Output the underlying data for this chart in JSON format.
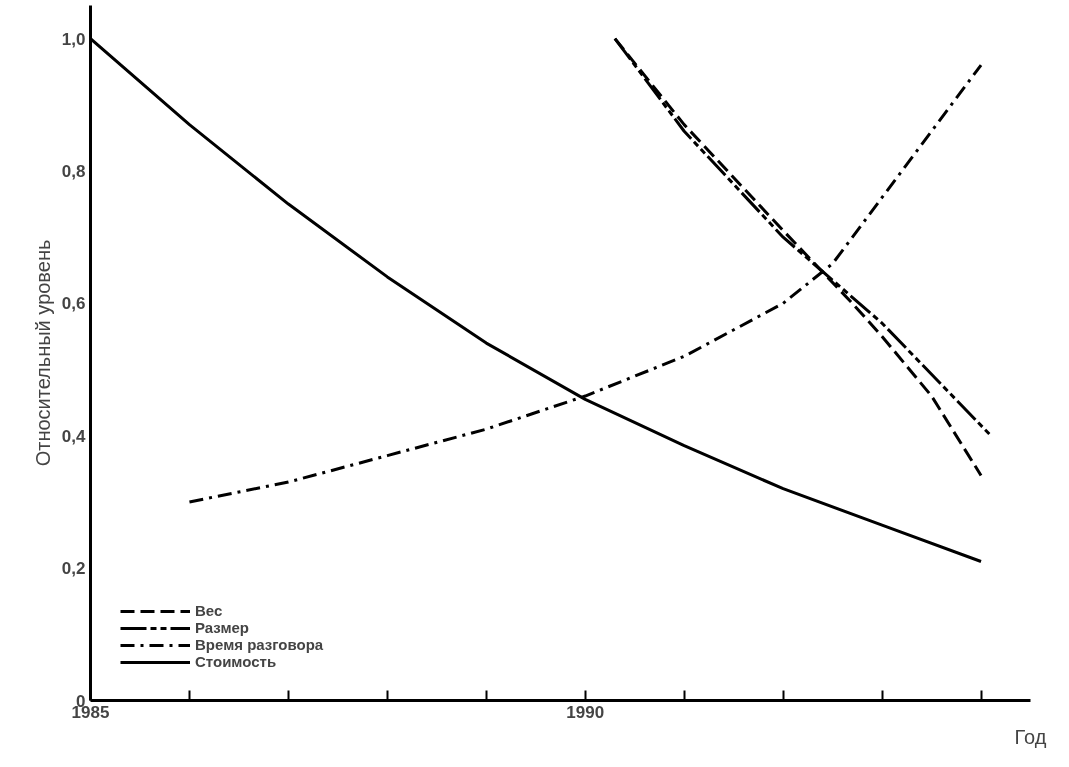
{
  "chart_data": {
    "type": "line",
    "ylabel": "Относительный уровень",
    "xlabel": "Год",
    "xlim": [
      1985,
      1994.5
    ],
    "ylim": [
      0,
      1.05
    ],
    "xticks": [
      {
        "value": 1985,
        "label": "1985"
      },
      {
        "value": 1986,
        "label": null
      },
      {
        "value": 1987,
        "label": null
      },
      {
        "value": 1988,
        "label": null
      },
      {
        "value": 1989,
        "label": null
      },
      {
        "value": 1990,
        "label": "1990"
      },
      {
        "value": 1991,
        "label": null
      },
      {
        "value": 1992,
        "label": null
      },
      {
        "value": 1993,
        "label": null
      },
      {
        "value": 1994,
        "label": null
      }
    ],
    "yticks": [
      {
        "value": 0,
        "label": "0"
      },
      {
        "value": 0.2,
        "label": "0,2"
      },
      {
        "value": 0.4,
        "label": "0,4"
      },
      {
        "value": 0.6,
        "label": "0,6"
      },
      {
        "value": 0.8,
        "label": "0,8"
      },
      {
        "value": 1.0,
        "label": "1,0"
      }
    ],
    "grid": false,
    "legend": "bottom left",
    "marker": "none",
    "series": [
      {
        "name": "Вес",
        "color": "#000000",
        "line_style": "dashed",
        "x": [
          1990.3,
          1991,
          1992,
          1992.7,
          1993,
          1993.5,
          1994
        ],
        "values": [
          1.0,
          0.87,
          0.71,
          0.6,
          0.55,
          0.46,
          0.34
        ]
      },
      {
        "name": "Размер",
        "color": "#000000",
        "line_style": "longdash",
        "x": [
          1990.3,
          1991,
          1992,
          1993,
          1994.1
        ],
        "values": [
          1.0,
          0.86,
          0.7,
          0.57,
          0.4
        ]
      },
      {
        "name": "Время разговора",
        "color": "#000000",
        "line_style": "dashdot",
        "x": [
          1986,
          1987,
          1988,
          1989,
          1990,
          1991,
          1992,
          1992.5,
          1993,
          1993.5,
          1994
        ],
        "values": [
          0.3,
          0.33,
          0.37,
          0.41,
          0.46,
          0.52,
          0.6,
          0.66,
          0.76,
          0.86,
          0.96
        ]
      },
      {
        "name": "Стоимость",
        "color": "#000000",
        "line_style": "solid",
        "x": [
          1985,
          1986,
          1987,
          1988,
          1989,
          1990,
          1991,
          1992,
          1993,
          1994
        ],
        "values": [
          1.0,
          0.87,
          0.75,
          0.64,
          0.54,
          0.455,
          0.385,
          0.32,
          0.265,
          0.21
        ]
      }
    ]
  }
}
